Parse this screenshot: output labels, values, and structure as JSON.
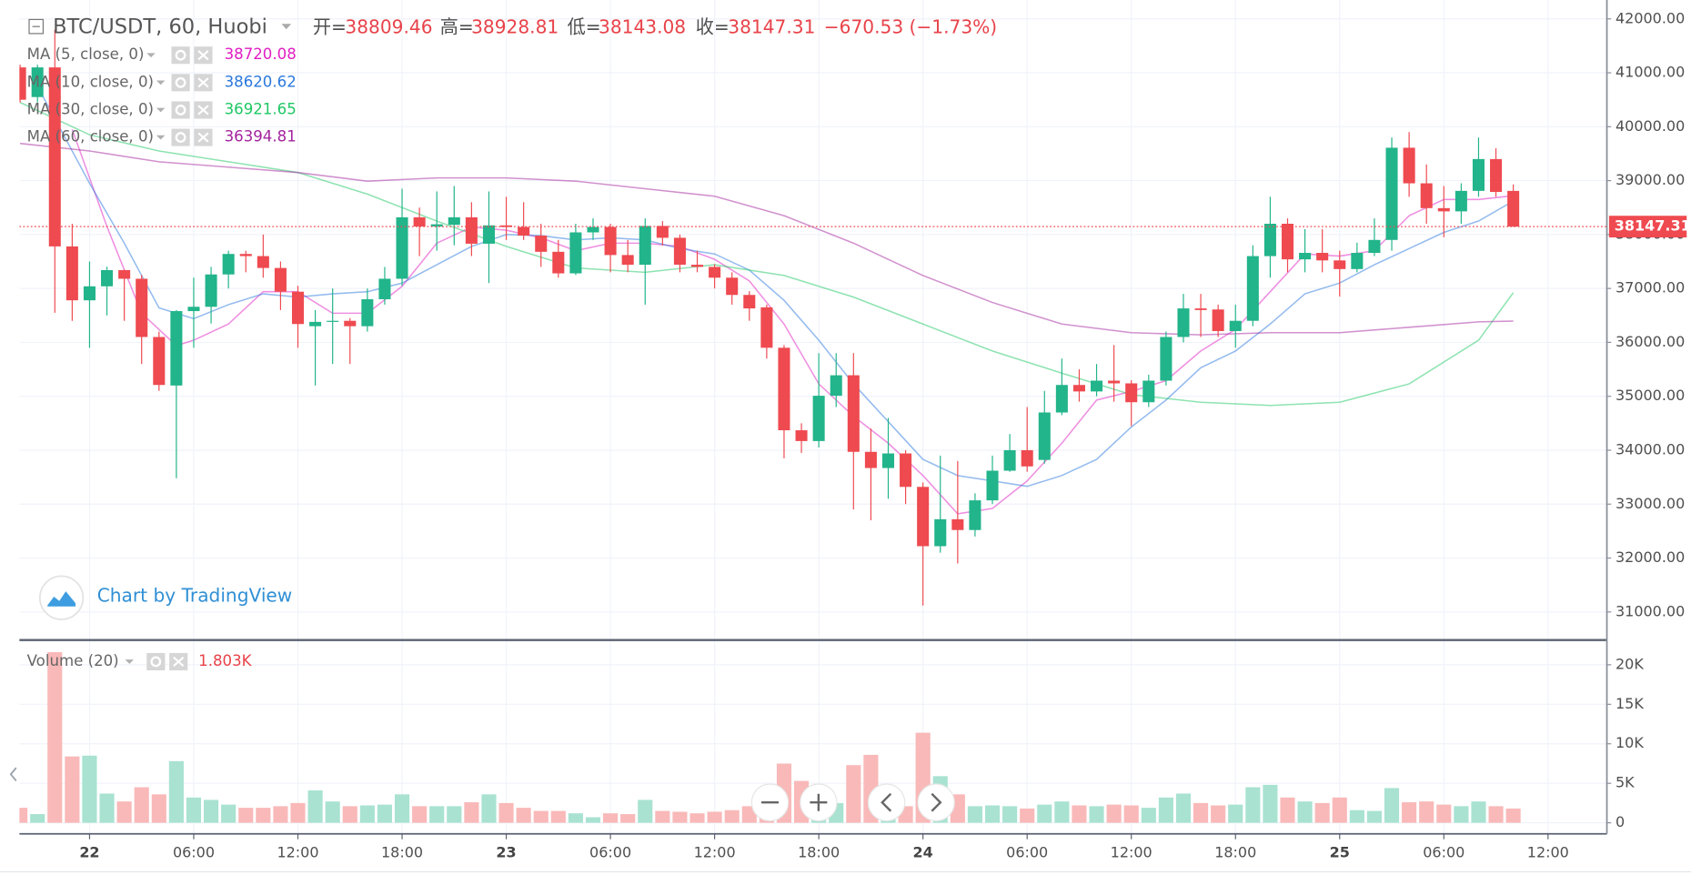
{
  "chart_data": [
    {
      "type": "candlestick",
      "title": "BTC/USDT, 60, Huobi",
      "ohlc_legend": [
        {
          "label": "开=",
          "value": "38809.46"
        },
        {
          "label": "高=",
          "value": "38928.81"
        },
        {
          "label": "低=",
          "value": "38143.08"
        },
        {
          "label": "收=",
          "value": "38147.31"
        }
      ],
      "change": "−670.53 (−1.73%)",
      "watermark": "Chart by TradingView",
      "up_color": "#22b48a",
      "down_color": "#ee4a50",
      "x": [
        -4,
        -3,
        -2,
        -1,
        0,
        1,
        2,
        3,
        4,
        5,
        6,
        7,
        8,
        9,
        10,
        11,
        12,
        13,
        14,
        15,
        16,
        17,
        18,
        19,
        20,
        21,
        22,
        23,
        24,
        25,
        26,
        27,
        28,
        29,
        30,
        31,
        32,
        33,
        34,
        35,
        36,
        37,
        38,
        39,
        40,
        41,
        42,
        43,
        44,
        45,
        46,
        47,
        48,
        49,
        50,
        51,
        52,
        53,
        54,
        55,
        56,
        57,
        58,
        59,
        60,
        61,
        62,
        63,
        64,
        65,
        66,
        67,
        68,
        69,
        70,
        71,
        72,
        73,
        74,
        75,
        76,
        77,
        78,
        79,
        80,
        81,
        82
      ],
      "open": [
        41100,
        40550,
        41100,
        37780,
        36780,
        37040,
        37340,
        37180,
        36100,
        35200,
        36580,
        36660,
        37260,
        37640,
        37600,
        37380,
        36940,
        36300,
        36380,
        36400,
        36300,
        36800,
        37180,
        38320,
        38150,
        38180,
        38320,
        37830,
        38170,
        38140,
        37980,
        37680,
        37280,
        38040,
        38140,
        37620,
        37440,
        38160,
        37940,
        37440,
        37400,
        37200,
        36880,
        36650,
        35900,
        34370,
        34170,
        35010,
        35390,
        33970,
        33670,
        33940,
        33320,
        32220,
        32720,
        32520,
        33070,
        33620,
        34000,
        33820,
        34700,
        35210,
        35090,
        35290,
        35240,
        34890,
        35290,
        36100,
        36630,
        36610,
        36210,
        36400,
        37600,
        38200,
        37540,
        37660,
        37520,
        37360,
        37660,
        37900,
        39610,
        38950,
        38490,
        38430,
        38810,
        39400,
        38809.46
      ],
      "high": [
        41150,
        41150,
        41800,
        38200,
        37500,
        37400,
        37350,
        37250,
        36200,
        36600,
        37200,
        37400,
        37700,
        37700,
        38000,
        37500,
        37050,
        36600,
        37000,
        36450,
        37000,
        37400,
        38850,
        38500,
        38800,
        38900,
        38600,
        38800,
        38700,
        38600,
        38200,
        37900,
        38200,
        38300,
        38200,
        37900,
        38300,
        38250,
        38000,
        37700,
        37450,
        37300,
        36950,
        36700,
        35950,
        34500,
        35800,
        35800,
        35800,
        34400,
        34600,
        34000,
        33400,
        33900,
        33800,
        33200,
        33900,
        34300,
        34800,
        35100,
        35700,
        35500,
        35600,
        35950,
        35300,
        35400,
        36200,
        36900,
        36900,
        36700,
        36700,
        37800,
        38700,
        38300,
        38100,
        38100,
        37700,
        37850,
        38300,
        39800,
        39900,
        39300,
        38900,
        38950,
        39800,
        39600,
        38928.81
      ],
      "low": [
        40450,
        40450,
        36550,
        36400,
        35900,
        36500,
        36400,
        35600,
        35100,
        33480,
        35900,
        36350,
        37000,
        37300,
        37200,
        36600,
        35900,
        35200,
        35600,
        35600,
        36200,
        36700,
        37050,
        37600,
        37700,
        37800,
        37600,
        37100,
        37900,
        37900,
        37400,
        37200,
        37250,
        37900,
        37300,
        37300,
        36700,
        37800,
        37300,
        37300,
        37000,
        36700,
        36400,
        35700,
        33850,
        33950,
        34050,
        34800,
        32900,
        32700,
        33100,
        33000,
        31120,
        32100,
        31900,
        32400,
        33000,
        33600,
        33600,
        33750,
        34650,
        34900,
        35000,
        34900,
        34450,
        34800,
        35200,
        36000,
        36100,
        36100,
        35900,
        36300,
        37200,
        37300,
        37300,
        37300,
        36850,
        37300,
        37600,
        37700,
        38700,
        38200,
        37950,
        38200,
        38700,
        38700,
        38143.08
      ],
      "close": [
        40500,
        41100,
        37780,
        36780,
        37040,
        37340,
        37180,
        36100,
        35210,
        36580,
        36660,
        37260,
        37640,
        37600,
        37380,
        36940,
        36340,
        36380,
        36400,
        36300,
        36800,
        37180,
        38320,
        38150,
        38190,
        38320,
        37830,
        38170,
        38140,
        37980,
        37680,
        37280,
        38040,
        38140,
        37620,
        37440,
        38160,
        37940,
        37440,
        37400,
        37200,
        36880,
        36630,
        35900,
        34370,
        34170,
        35010,
        35390,
        33970,
        33670,
        33940,
        33320,
        32220,
        32720,
        32520,
        33070,
        33620,
        34000,
        33700,
        34700,
        35210,
        35090,
        35290,
        35240,
        34890,
        35290,
        36100,
        36630,
        36600,
        36210,
        36400,
        37600,
        38200,
        37540,
        37660,
        37520,
        37360,
        37660,
        37900,
        39610,
        38950,
        38490,
        38430,
        38810,
        39400,
        38790,
        38147.31
      ],
      "series": [
        {
          "name": "MA (5, close, 0)",
          "color": "#e01fc3",
          "x": [
            -1,
            1,
            3,
            5,
            6,
            8,
            10,
            12,
            14,
            16,
            18,
            20,
            22,
            24,
            26,
            28,
            30,
            32,
            34,
            36,
            38,
            40,
            42,
            44,
            46,
            48,
            50,
            52,
            54,
            56,
            58,
            60,
            62,
            64,
            66,
            68,
            70,
            72,
            74,
            76,
            78,
            80,
            82
          ],
          "values": [
            39950,
            38150,
            36540,
            35940,
            36040,
            36340,
            36940,
            36940,
            36540,
            36540,
            37040,
            37840,
            38140,
            38080,
            37940,
            37700,
            37840,
            37840,
            37780,
            37540,
            37140,
            36340,
            35230,
            34630,
            34130,
            33530,
            32820,
            32920,
            33430,
            34130,
            34930,
            35090,
            35290,
            35840,
            36240,
            36940,
            37640,
            37600,
            37700,
            38350,
            38650,
            38650,
            38720.08
          ]
        },
        {
          "name": "MA (10, close, 0)",
          "color": "#2a78dd",
          "x": [
            -3,
            0,
            2,
            4,
            6,
            8,
            10,
            12,
            14,
            16,
            18,
            20,
            22,
            24,
            26,
            28,
            30,
            32,
            34,
            36,
            38,
            40,
            42,
            44,
            46,
            48,
            50,
            52,
            54,
            56,
            58,
            60,
            62,
            64,
            66,
            68,
            70,
            72,
            74,
            76,
            78,
            80,
            82
          ],
          "values": [
            40750,
            38950,
            37840,
            36640,
            36440,
            36700,
            36900,
            36840,
            36900,
            36940,
            37100,
            37440,
            37780,
            38000,
            37980,
            37900,
            37940,
            37900,
            37740,
            37640,
            37340,
            36780,
            36040,
            35230,
            34530,
            33830,
            33530,
            33430,
            33330,
            33530,
            33830,
            34430,
            34930,
            35530,
            35840,
            36340,
            36900,
            37100,
            37440,
            37740,
            38040,
            38250,
            38620.62
          ]
        },
        {
          "name": "MA (30, close, 0)",
          "color": "#1ec864",
          "x": [
            -4,
            0,
            4,
            8,
            12,
            16,
            20,
            24,
            28,
            32,
            36,
            40,
            44,
            48,
            52,
            56,
            60,
            64,
            68,
            72,
            76,
            80,
            82
          ],
          "values": [
            40450,
            39850,
            39550,
            39350,
            39150,
            38750,
            38250,
            37780,
            37380,
            37300,
            37440,
            37240,
            36840,
            36340,
            35840,
            35430,
            35030,
            34890,
            34830,
            34890,
            35230,
            36040,
            36921.65
          ]
        },
        {
          "name": "MA (60, close, 0)",
          "color": "#a3249e",
          "x": [
            -4,
            0,
            4,
            8,
            12,
            16,
            20,
            24,
            28,
            32,
            36,
            40,
            44,
            48,
            52,
            56,
            60,
            64,
            68,
            72,
            76,
            80,
            82
          ],
          "values": [
            39690,
            39550,
            39350,
            39250,
            39150,
            38990,
            39050,
            39050,
            38990,
            38850,
            38710,
            38350,
            37840,
            37240,
            36740,
            36340,
            36180,
            36140,
            36180,
            36180,
            36280,
            36380,
            36394.81
          ]
        }
      ],
      "last_price": 38147.31,
      "xlim": [
        -4.04,
        87.39
      ],
      "xticks": [
        {
          "value": 0,
          "label": "22"
        },
        {
          "value": 6,
          "label": "06:00"
        },
        {
          "value": 12,
          "label": "12:00"
        },
        {
          "value": 18,
          "label": "18:00"
        },
        {
          "value": 24,
          "label": "23"
        },
        {
          "value": 30,
          "label": "06:00"
        },
        {
          "value": 36,
          "label": "12:00"
        },
        {
          "value": 42,
          "label": "18:00"
        },
        {
          "value": 48,
          "label": "24"
        },
        {
          "value": 54,
          "label": "06:00"
        },
        {
          "value": 60,
          "label": "12:00"
        },
        {
          "value": 66,
          "label": "18:00"
        },
        {
          "value": 72,
          "label": "25"
        },
        {
          "value": 78,
          "label": "06:00"
        },
        {
          "value": 84,
          "label": "12:00"
        }
      ],
      "ylim": [
        30500,
        42350
      ],
      "yticks": [
        {
          "value": 31000,
          "label": "31000.00"
        },
        {
          "value": 32000,
          "label": "32000.00"
        },
        {
          "value": 33000,
          "label": "33000.00"
        },
        {
          "value": 34000,
          "label": "34000.00"
        },
        {
          "value": 35000,
          "label": "35000.00"
        },
        {
          "value": 36000,
          "label": "36000.00"
        },
        {
          "value": 37000,
          "label": "37000.00"
        },
        {
          "value": 38000,
          "label": "38000.00"
        },
        {
          "value": 39000,
          "label": "39000.00"
        },
        {
          "value": 40000,
          "label": "40000.00"
        },
        {
          "value": 41000,
          "label": "41000.00"
        },
        {
          "value": 42000,
          "label": "42000.00"
        }
      ],
      "grid": true
    },
    {
      "type": "volume",
      "title": "Volume (20)",
      "legend_value": "1.803K",
      "up_color": "#a9e2d1",
      "down_color": "#f9b9b9",
      "x": [
        -4,
        -3,
        -2,
        -1,
        0,
        1,
        2,
        3,
        4,
        5,
        6,
        7,
        8,
        9,
        10,
        11,
        12,
        13,
        14,
        15,
        16,
        17,
        18,
        19,
        20,
        21,
        22,
        23,
        24,
        25,
        26,
        27,
        28,
        29,
        30,
        31,
        32,
        33,
        34,
        35,
        36,
        37,
        38,
        39,
        40,
        41,
        42,
        43,
        44,
        45,
        46,
        47,
        48,
        49,
        50,
        51,
        52,
        53,
        54,
        55,
        56,
        57,
        58,
        59,
        60,
        61,
        62,
        63,
        64,
        65,
        66,
        67,
        68,
        69,
        70,
        71,
        72,
        73,
        74,
        75,
        76,
        77,
        78,
        79,
        80,
        81,
        82
      ],
      "values": [
        1900,
        1100,
        21600,
        8400,
        8500,
        3700,
        2700,
        4500,
        3600,
        7800,
        3200,
        2900,
        2300,
        1900,
        1900,
        2100,
        2500,
        4100,
        2700,
        2100,
        2200,
        2300,
        3600,
        2100,
        2100,
        2100,
        2600,
        3600,
        2500,
        1900,
        1500,
        1500,
        1200,
        700,
        1200,
        1100,
        2900,
        1500,
        1400,
        1200,
        1400,
        1600,
        2100,
        3400,
        7500,
        5300,
        3700,
        2500,
        7300,
        8600,
        3400,
        2100,
        11400,
        5900,
        3600,
        2100,
        2200,
        2100,
        1800,
        2300,
        2700,
        2200,
        2100,
        2300,
        2200,
        1900,
        3200,
        3700,
        2500,
        2200,
        2300,
        4500,
        4800,
        3200,
        2700,
        2500,
        3200,
        1600,
        1500,
        4400,
        2600,
        2700,
        2300,
        2100,
        2700,
        2100,
        1803
      ],
      "ylim": [
        -1400,
        23000
      ],
      "yticks": [
        0,
        {
          "value": 5000,
          "label": "5K"
        },
        {
          "value": 10000,
          "label": "10K"
        },
        {
          "value": 15000,
          "label": "15K"
        },
        {
          "value": 20000,
          "label": "20K"
        }
      ],
      "grid": true
    }
  ]
}
